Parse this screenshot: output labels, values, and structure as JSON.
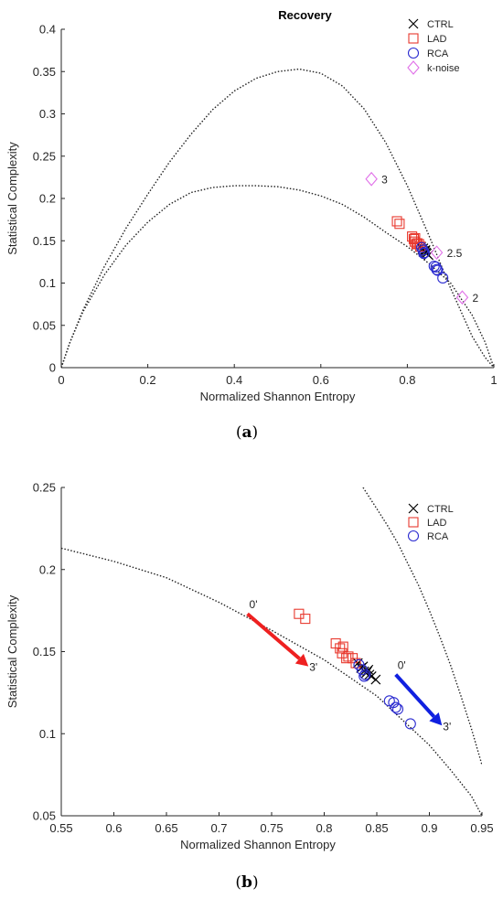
{
  "panels": {
    "a_caption": "a",
    "b_caption": "b"
  },
  "colors": {
    "CTRL": "#000000",
    "LAD": "#e8392e",
    "RCA": "#2b2bd0",
    "k-noise": "#e070e8",
    "arrow_red": "#ee2020",
    "arrow_blue": "#1020e0"
  },
  "chart_data": [
    {
      "type": "scatter",
      "title": "Recovery",
      "xlabel": "Normalized Shannon Entropy",
      "ylabel": "Statistical Complexity",
      "xlim": [
        0,
        1
      ],
      "ylim": [
        0,
        0.4
      ],
      "xticks": [
        0,
        0.2,
        0.4,
        0.6,
        0.8,
        1
      ],
      "xtick_labels": [
        "0",
        "0.2",
        "0.4",
        "0.6",
        "0.8",
        "1"
      ],
      "yticks": [
        0,
        0.05,
        0.1,
        0.15,
        0.2,
        0.25,
        0.3,
        0.35,
        0.4
      ],
      "ytick_labels": [
        "0",
        "0.05",
        "0.1",
        "0.15",
        "0.2",
        "0.25",
        "0.3",
        "0.35",
        "0.4"
      ],
      "grid": false,
      "legend_position": "top-right",
      "series": [
        {
          "name": "CTRL",
          "marker": "x",
          "x": [
            0.832,
            0.835,
            0.838,
            0.84,
            0.842,
            0.843,
            0.845,
            0.837,
            0.841,
            0.849
          ],
          "y": [
            0.143,
            0.14,
            0.138,
            0.137,
            0.139,
            0.136,
            0.135,
            0.141,
            0.138,
            0.133
          ]
        },
        {
          "name": "LAD",
          "marker": "square",
          "x": [
            0.776,
            0.782,
            0.811,
            0.815,
            0.818,
            0.817,
            0.821,
            0.823,
            0.827,
            0.83
          ],
          "y": [
            0.173,
            0.17,
            0.155,
            0.152,
            0.153,
            0.149,
            0.146,
            0.147,
            0.146,
            0.143
          ]
        },
        {
          "name": "RCA",
          "marker": "circle",
          "x": [
            0.833,
            0.836,
            0.839,
            0.838,
            0.862,
            0.866,
            0.868,
            0.87,
            0.882
          ],
          "y": [
            0.142,
            0.139,
            0.136,
            0.135,
            0.12,
            0.119,
            0.116,
            0.115,
            0.106
          ]
        },
        {
          "name": "k-noise",
          "marker": "diamond",
          "x": [
            0.717,
            0.868,
            0.927
          ],
          "y": [
            0.223,
            0.136,
            0.083
          ]
        }
      ],
      "annotations": [
        {
          "text": "3",
          "x": 0.717,
          "y": 0.223
        },
        {
          "text": "2.5",
          "x": 0.868,
          "y": 0.136
        },
        {
          "text": "2",
          "x": 0.927,
          "y": 0.083
        }
      ],
      "curves": {
        "upper": {
          "x": [
            0,
            0.02,
            0.05,
            0.1,
            0.15,
            0.2,
            0.25,
            0.3,
            0.35,
            0.4,
            0.45,
            0.5,
            0.55,
            0.6,
            0.65,
            0.7,
            0.75,
            0.8,
            0.85,
            0.9,
            0.95,
            0.98,
            1
          ],
          "y": [
            0,
            0.03,
            0.068,
            0.12,
            0.165,
            0.205,
            0.243,
            0.276,
            0.305,
            0.327,
            0.342,
            0.35,
            0.353,
            0.348,
            0.333,
            0.306,
            0.266,
            0.215,
            0.156,
            0.094,
            0.037,
            0.012,
            0
          ]
        },
        "lower": {
          "x": [
            0,
            0.02,
            0.05,
            0.1,
            0.15,
            0.2,
            0.25,
            0.3,
            0.35,
            0.4,
            0.45,
            0.5,
            0.55,
            0.6,
            0.65,
            0.7,
            0.75,
            0.8,
            0.85,
            0.9,
            0.95,
            0.98,
            1
          ],
          "y": [
            0,
            0.03,
            0.066,
            0.11,
            0.145,
            0.172,
            0.193,
            0.207,
            0.213,
            0.215,
            0.215,
            0.214,
            0.21,
            0.203,
            0.193,
            0.178,
            0.16,
            0.143,
            0.123,
            0.1,
            0.062,
            0.03,
            0
          ]
        }
      }
    },
    {
      "type": "scatter",
      "title": "",
      "xlabel": "Normalized Shannon Entropy",
      "ylabel": "Statistical Complexity",
      "xlim": [
        0.55,
        0.95
      ],
      "ylim": [
        0.05,
        0.25
      ],
      "xticks": [
        0.55,
        0.6,
        0.65,
        0.7,
        0.75,
        0.8,
        0.85,
        0.9,
        0.95
      ],
      "xtick_labels": [
        "0.55",
        "0.6",
        "0.65",
        "0.7",
        "0.75",
        "0.8",
        "0.85",
        "0.9",
        "0.95"
      ],
      "yticks": [
        0.05,
        0.1,
        0.15,
        0.2,
        0.25
      ],
      "ytick_labels": [
        "0.05",
        "0.1",
        "0.15",
        "0.2",
        "0.25"
      ],
      "grid": false,
      "legend_position": "top-right",
      "series": [
        {
          "name": "CTRL",
          "marker": "x",
          "x": [
            0.832,
            0.835,
            0.838,
            0.84,
            0.842,
            0.843,
            0.845,
            0.837,
            0.841,
            0.849
          ],
          "y": [
            0.143,
            0.14,
            0.138,
            0.137,
            0.139,
            0.136,
            0.135,
            0.141,
            0.138,
            0.133
          ]
        },
        {
          "name": "LAD",
          "marker": "square",
          "x": [
            0.776,
            0.782,
            0.811,
            0.815,
            0.818,
            0.817,
            0.821,
            0.823,
            0.827,
            0.83
          ],
          "y": [
            0.173,
            0.17,
            0.155,
            0.152,
            0.153,
            0.149,
            0.146,
            0.147,
            0.146,
            0.143
          ]
        },
        {
          "name": "RCA",
          "marker": "circle",
          "x": [
            0.833,
            0.836,
            0.839,
            0.838,
            0.862,
            0.866,
            0.868,
            0.87,
            0.882
          ],
          "y": [
            0.142,
            0.139,
            0.136,
            0.135,
            0.12,
            0.119,
            0.116,
            0.115,
            0.106
          ]
        }
      ],
      "arrows": [
        {
          "color": "red",
          "from": [
            0.727,
            0.173
          ],
          "to": [
            0.785,
            0.141
          ],
          "start_label": "0'",
          "end_label": "3'"
        },
        {
          "color": "blue",
          "from": [
            0.868,
            0.136
          ],
          "to": [
            0.912,
            0.105
          ],
          "start_label": "0'",
          "end_label": "3'"
        }
      ],
      "curves": {
        "upper": {
          "x": [
            0.837,
            0.85,
            0.86,
            0.87,
            0.88,
            0.89,
            0.9,
            0.91,
            0.92,
            0.93,
            0.94,
            0.95
          ],
          "y": [
            0.25,
            0.237,
            0.227,
            0.216,
            0.203,
            0.19,
            0.175,
            0.159,
            0.142,
            0.123,
            0.103,
            0.081
          ]
        },
        "lower": {
          "x": [
            0.55,
            0.6,
            0.65,
            0.7,
            0.75,
            0.8,
            0.85,
            0.88,
            0.9,
            0.92,
            0.94,
            0.95
          ],
          "y": [
            0.213,
            0.205,
            0.195,
            0.18,
            0.163,
            0.145,
            0.123,
            0.105,
            0.093,
            0.078,
            0.062,
            0.05
          ]
        }
      }
    }
  ]
}
